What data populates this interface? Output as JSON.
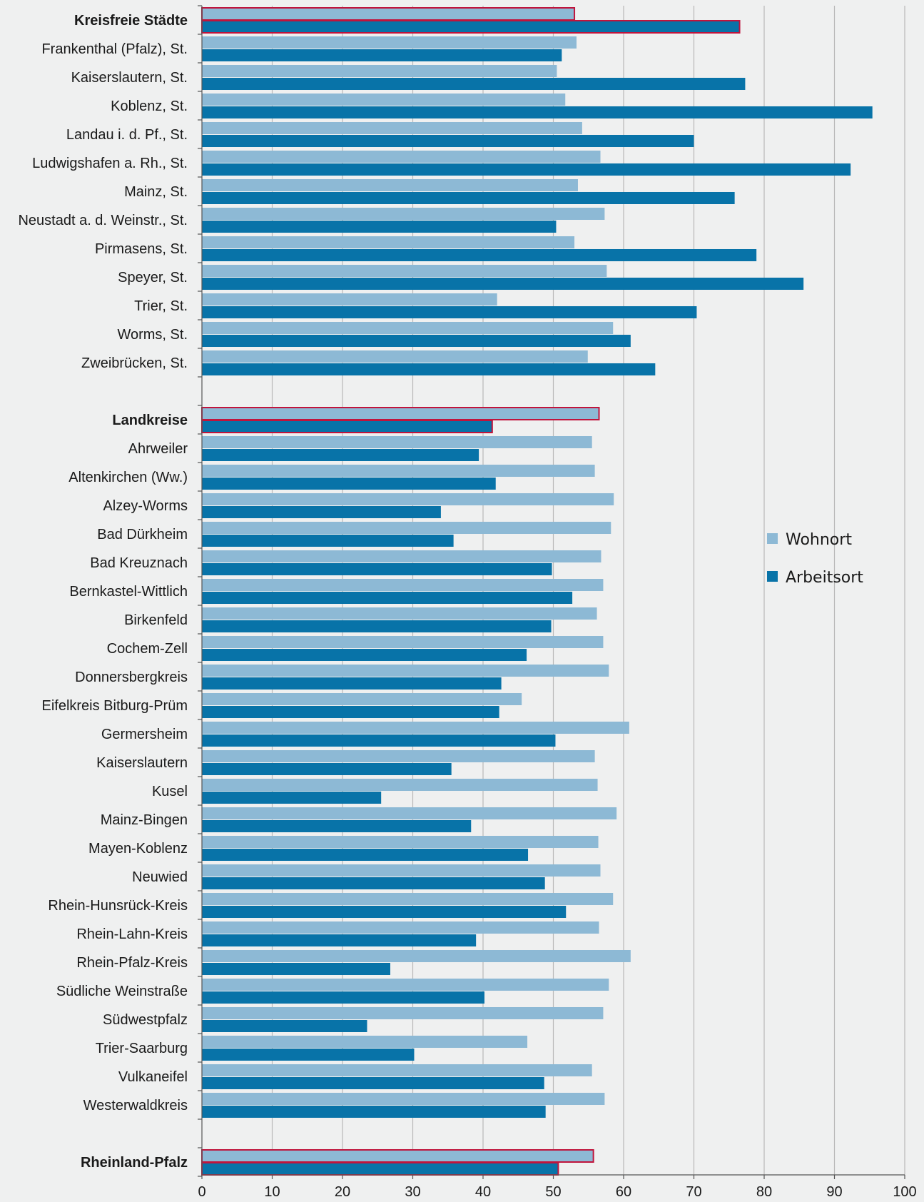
{
  "colors": {
    "wohnort": "#8db9d5",
    "arbeitsort": "#0873a8",
    "highlight_border": "#c0143c",
    "grid": "#b8b8b8",
    "axis": "#555555",
    "background": "#eff0f0"
  },
  "chart_data": {
    "type": "bar",
    "orientation": "horizontal",
    "title": "",
    "xlabel": "",
    "ylabel": "",
    "xlim": [
      0,
      100
    ],
    "x_ticks": [
      "0",
      "10",
      "20",
      "30",
      "40",
      "50",
      "60",
      "70",
      "80",
      "90",
      "100"
    ],
    "grid": true,
    "legend": {
      "placement": "center-right",
      "entries": [
        "Wohnort",
        "Arbeitsort"
      ]
    },
    "groups": [
      {
        "items": [
          {
            "label": "Kreisfreie Städte",
            "bold": true,
            "highlight": true,
            "wohnort": 53.0,
            "arbeitsort": 76.5
          },
          {
            "label": "Frankenthal (Pfalz), St.",
            "wohnort": 53.3,
            "arbeitsort": 51.2
          },
          {
            "label": "Kaiserslautern, St.",
            "wohnort": 50.5,
            "arbeitsort": 77.3
          },
          {
            "label": "Koblenz, St.",
            "wohnort": 51.7,
            "arbeitsort": 95.4
          },
          {
            "label": "Landau i. d. Pf., St.",
            "wohnort": 54.1,
            "arbeitsort": 70.0
          },
          {
            "label": "Ludwigshafen a. Rh., St.",
            "wohnort": 56.7,
            "arbeitsort": 92.3
          },
          {
            "label": "Mainz, St.",
            "wohnort": 53.5,
            "arbeitsort": 75.8
          },
          {
            "label": "Neustadt a. d. Weinstr., St.",
            "wohnort": 57.3,
            "arbeitsort": 50.4
          },
          {
            "label": "Pirmasens, St.",
            "wohnort": 53.0,
            "arbeitsort": 78.9
          },
          {
            "label": "Speyer, St.",
            "wohnort": 57.6,
            "arbeitsort": 85.6
          },
          {
            "label": "Trier, St.",
            "wohnort": 42.0,
            "arbeitsort": 70.4
          },
          {
            "label": "Worms, St.",
            "wohnort": 58.5,
            "arbeitsort": 61.0
          },
          {
            "label": "Zweibrücken, St.",
            "wohnort": 54.9,
            "arbeitsort": 64.5
          }
        ]
      },
      {
        "items": [
          {
            "label": "Landkreise",
            "bold": true,
            "highlight": true,
            "wohnort": 56.5,
            "arbeitsort": 41.3
          },
          {
            "label": "Ahrweiler",
            "wohnort": 55.5,
            "arbeitsort": 39.4
          },
          {
            "label": "Altenkirchen (Ww.)",
            "wohnort": 55.9,
            "arbeitsort": 41.8
          },
          {
            "label": "Alzey-Worms",
            "wohnort": 58.6,
            "arbeitsort": 34.0
          },
          {
            "label": "Bad Dürkheim",
            "wohnort": 58.2,
            "arbeitsort": 35.8
          },
          {
            "label": "Bad Kreuznach",
            "wohnort": 56.8,
            "arbeitsort": 49.8
          },
          {
            "label": "Bernkastel-Wittlich",
            "wohnort": 57.1,
            "arbeitsort": 52.7
          },
          {
            "label": "Birkenfeld",
            "wohnort": 56.2,
            "arbeitsort": 49.7
          },
          {
            "label": "Cochem-Zell",
            "wohnort": 57.1,
            "arbeitsort": 46.2
          },
          {
            "label": "Donnersbergkreis",
            "wohnort": 57.9,
            "arbeitsort": 42.6
          },
          {
            "label": "Eifelkreis Bitburg-Prüm",
            "wohnort": 45.5,
            "arbeitsort": 42.3
          },
          {
            "label": "Germersheim",
            "wohnort": 60.8,
            "arbeitsort": 50.3
          },
          {
            "label": "Kaiserslautern",
            "wohnort": 55.9,
            "arbeitsort": 35.5
          },
          {
            "label": "Kusel",
            "wohnort": 56.3,
            "arbeitsort": 25.5
          },
          {
            "label": "Mainz-Bingen",
            "wohnort": 59.0,
            "arbeitsort": 38.3
          },
          {
            "label": "Mayen-Koblenz",
            "wohnort": 56.4,
            "arbeitsort": 46.4
          },
          {
            "label": "Neuwied",
            "wohnort": 56.7,
            "arbeitsort": 48.8
          },
          {
            "label": "Rhein-Hunsrück-Kreis",
            "wohnort": 58.5,
            "arbeitsort": 51.8
          },
          {
            "label": "Rhein-Lahn-Kreis",
            "wohnort": 56.5,
            "arbeitsort": 39.0
          },
          {
            "label": "Rhein-Pfalz-Kreis",
            "wohnort": 61.0,
            "arbeitsort": 26.8
          },
          {
            "label": "Südliche Weinstraße",
            "wohnort": 57.9,
            "arbeitsort": 40.2
          },
          {
            "label": "Südwestpfalz",
            "wohnort": 57.1,
            "arbeitsort": 23.5
          },
          {
            "label": "Trier-Saarburg",
            "wohnort": 46.3,
            "arbeitsort": 30.2
          },
          {
            "label": "Vulkaneifel",
            "wohnort": 55.5,
            "arbeitsort": 48.7
          },
          {
            "label": "Westerwaldkreis",
            "wohnort": 57.3,
            "arbeitsort": 48.9
          }
        ]
      },
      {
        "items": [
          {
            "label": "Rheinland-Pfalz",
            "bold": true,
            "highlight": true,
            "wohnort": 55.7,
            "arbeitsort": 50.7
          }
        ]
      }
    ]
  }
}
